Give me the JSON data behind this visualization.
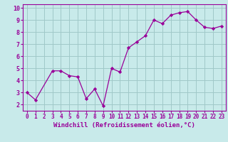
{
  "x": [
    0,
    1,
    3,
    4,
    5,
    6,
    7,
    8,
    9,
    10,
    11,
    12,
    13,
    14,
    15,
    16,
    17,
    18,
    19,
    20,
    21,
    22,
    23
  ],
  "y": [
    3.0,
    2.4,
    4.8,
    4.8,
    4.4,
    4.3,
    2.5,
    3.3,
    1.9,
    5.0,
    4.7,
    6.7,
    7.2,
    7.7,
    9.0,
    8.7,
    9.4,
    9.6,
    9.7,
    9.0,
    8.4,
    8.3,
    8.5
  ],
  "line_color": "#990099",
  "marker_color": "#990099",
  "bg_color": "#c8eaea",
  "grid_color": "#a0c8c8",
  "xlabel": "Windchill (Refroidissement éolien,°C)",
  "xlim": [
    -0.5,
    23.5
  ],
  "ylim": [
    1.5,
    10.3
  ],
  "yticks": [
    2,
    3,
    4,
    5,
    6,
    7,
    8,
    9,
    10
  ],
  "xticks": [
    0,
    1,
    2,
    3,
    4,
    5,
    6,
    7,
    8,
    9,
    10,
    11,
    12,
    13,
    14,
    15,
    16,
    17,
    18,
    19,
    20,
    21,
    22,
    23
  ],
  "tick_color": "#990099",
  "label_fontsize": 5.5,
  "xlabel_fontsize": 6.5
}
